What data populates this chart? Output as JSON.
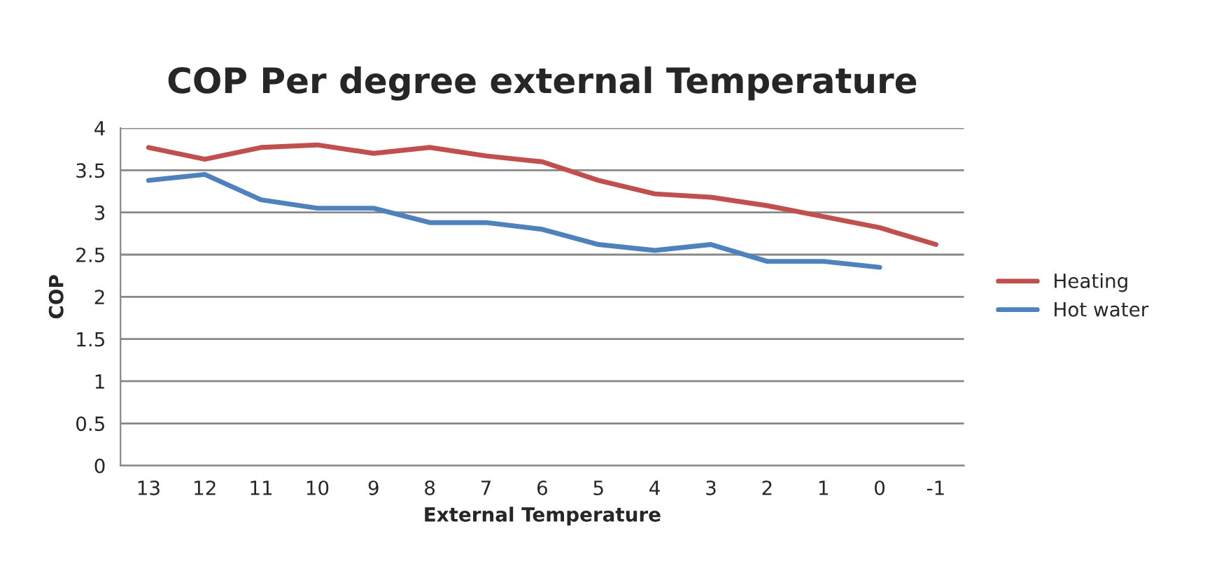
{
  "chart_data": {
    "type": "line",
    "title": "COP Per degree external Temperature",
    "xlabel": "External Temperature",
    "ylabel": "COP",
    "categories": [
      "13",
      "12",
      "11",
      "10",
      "9",
      "8",
      "7",
      "6",
      "5",
      "4",
      "3",
      "2",
      "1",
      "0",
      "-1"
    ],
    "series": [
      {
        "name": "Heating",
        "color": "#c0504d",
        "values": [
          3.77,
          3.63,
          3.77,
          3.8,
          3.7,
          3.77,
          3.67,
          3.6,
          3.38,
          3.22,
          3.18,
          3.08,
          2.95,
          2.82,
          2.62
        ]
      },
      {
        "name": "Hot water",
        "color": "#4f81bd",
        "values": [
          3.38,
          3.45,
          3.15,
          3.05,
          3.05,
          2.88,
          2.88,
          2.8,
          2.62,
          2.55,
          2.62,
          2.42,
          2.42,
          2.35,
          null
        ]
      }
    ],
    "ylim": [
      0,
      4
    ],
    "yticks": [
      0,
      {
        "value": 0.5,
        "label": "0.5"
      },
      1,
      {
        "value": 1.5,
        "label": "1.5"
      },
      2,
      {
        "value": 2.5,
        "label": "2.5"
      },
      3,
      {
        "value": 3.5,
        "label": "3.5"
      },
      4
    ],
    "grid": "y",
    "legend": "right",
    "marker": "none",
    "line_style": "solid"
  }
}
